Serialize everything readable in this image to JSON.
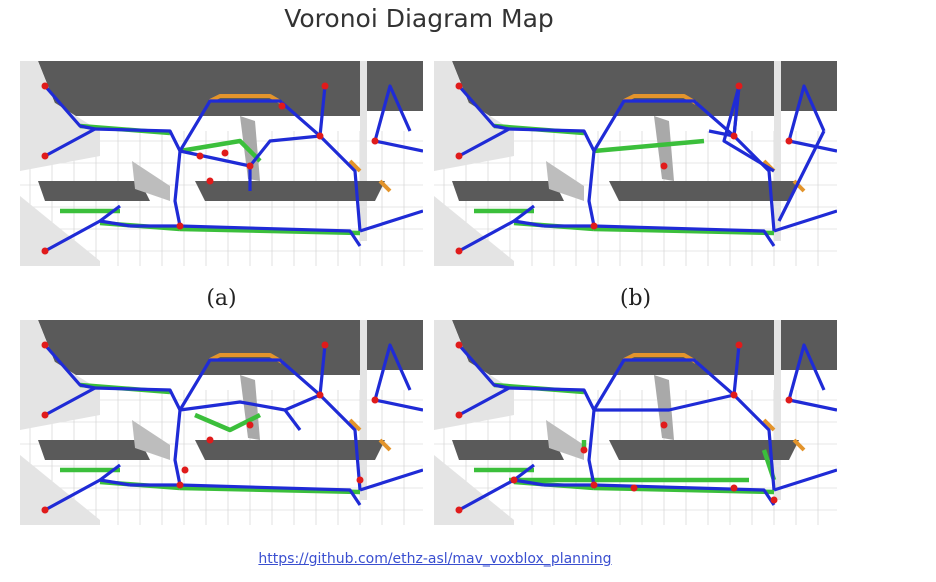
{
  "title": "Voronoi Diagram Map",
  "panels": [
    {
      "id": "a",
      "caption": "(a)"
    },
    {
      "id": "b",
      "caption": "(b)"
    },
    {
      "id": "c",
      "caption": ""
    },
    {
      "id": "d",
      "caption": ""
    }
  ],
  "footer": {
    "link_text": "https://github.com/ethz-asl/mav_voxblox_planning"
  },
  "colors": {
    "wall_dark": "#5a5a5a",
    "wall_light": "#e4e4e4",
    "floor": "#ffffff",
    "grid": "#cfcfcf",
    "edge_blue": "#1f2bd6",
    "edge_green": "#3bbf3b",
    "edge_orange": "#e3942b",
    "node_red": "#e01b1b"
  }
}
